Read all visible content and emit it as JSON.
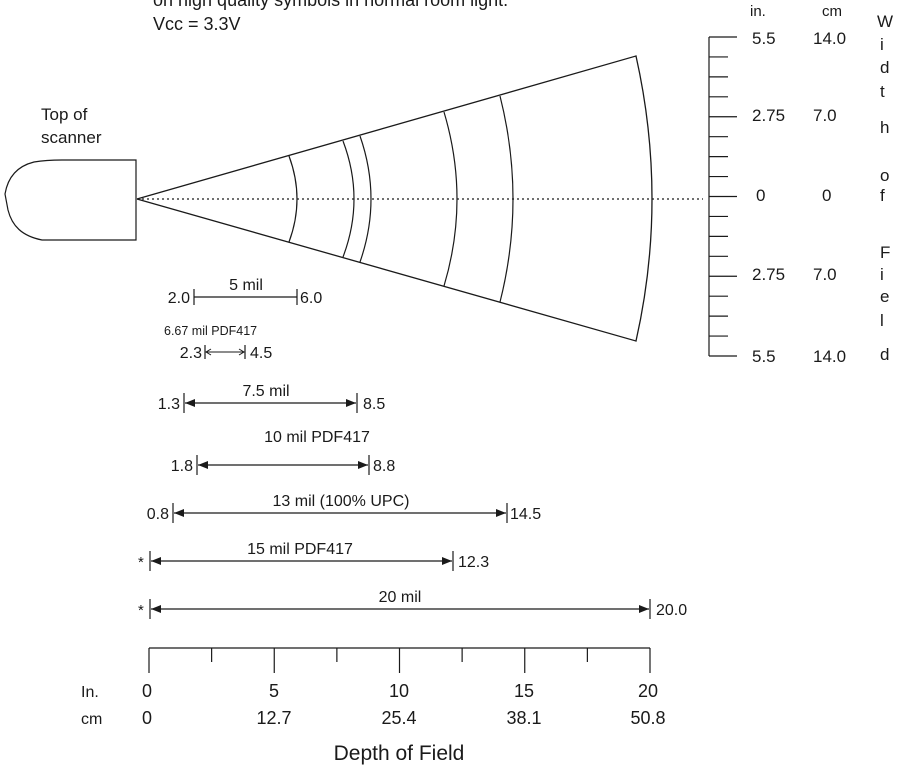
{
  "header": {
    "note_line1": "on high quality symbols in normal room light.",
    "note_line2": "Vcc = 3.3V"
  },
  "scanner": {
    "label_line1": "Top of",
    "label_line2": "scanner"
  },
  "width_scale": {
    "unit_in": "in.",
    "unit_cm": "cm",
    "title_letters": [
      "W",
      "i",
      "d",
      "t",
      "h",
      "",
      "o",
      "f",
      "",
      "F",
      "i",
      "e",
      "l",
      "d"
    ],
    "labels": [
      {
        "in": "5.5",
        "cm": "14.0"
      },
      {
        "in": "2.75",
        "cm": "7.0"
      },
      {
        "in": "0",
        "cm": "0"
      },
      {
        "in": "2.75",
        "cm": "7.0"
      },
      {
        "in": "5.5",
        "cm": "14.0"
      }
    ]
  },
  "ranges": [
    {
      "label": "5 mil",
      "near": "2.0",
      "far": "6.0",
      "near_in": 2.0,
      "far_in": 6.0,
      "arrows": false
    },
    {
      "label": "6.67 mil PDF417",
      "near": "2.3",
      "far": "4.5",
      "near_in": 2.3,
      "far_in": 4.5,
      "arrows": true
    },
    {
      "label": "7.5 mil",
      "near": "1.3",
      "far": "8.5",
      "near_in": 1.3,
      "far_in": 8.5,
      "arrows": true
    },
    {
      "label": "10 mil PDF417",
      "near": "1.8",
      "far": "8.8",
      "near_in": 1.8,
      "far_in": 8.8,
      "arrows": true
    },
    {
      "label": "13 mil (100% UPC)",
      "near": "0.8",
      "far": "14.5",
      "near_in": 0.8,
      "far_in": 14.5,
      "arrows": true
    },
    {
      "label": "15 mil PDF417",
      "near": "*",
      "far": "12.3",
      "near_in": 0.0,
      "far_in": 12.3,
      "arrows": true
    },
    {
      "label": "20 mil",
      "near": "*",
      "far": "20.0",
      "near_in": 0.0,
      "far_in": 20.0,
      "arrows": true
    }
  ],
  "depth_axis": {
    "title": "Depth of Field",
    "row_label_in": "In.",
    "row_label_cm": "cm",
    "ticks": [
      {
        "in": "0",
        "cm": "0"
      },
      {
        "in": "5",
        "cm": "12.7"
      },
      {
        "in": "10",
        "cm": "25.4"
      },
      {
        "in": "15",
        "cm": "38.1"
      },
      {
        "in": "20",
        "cm": "50.8"
      }
    ],
    "minor_ticks_in": [
      2.5,
      7.5,
      12.5,
      17.5
    ]
  }
}
